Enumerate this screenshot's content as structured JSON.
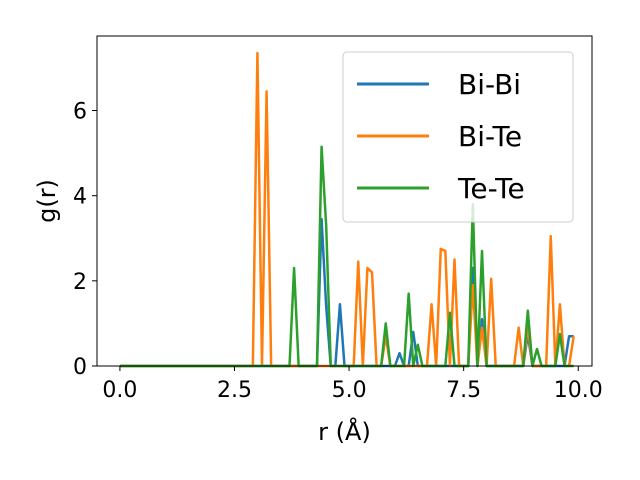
{
  "chart_data": {
    "type": "line",
    "title": "",
    "xlabel": "r (Å)",
    "ylabel": "g(r)",
    "xlim": [
      -0.5,
      10.3
    ],
    "ylim": [
      0,
      7.75
    ],
    "xticks": [
      0.0,
      2.5,
      5.0,
      7.5,
      10.0
    ],
    "xtick_labels": [
      "0.0",
      "2.5",
      "5.0",
      "7.5",
      "10.0"
    ],
    "yticks": [
      0,
      2,
      4,
      6
    ],
    "ytick_labels": [
      "0",
      "2",
      "4",
      "6"
    ],
    "grid": false,
    "legend_position": "top-right",
    "series": [
      {
        "name": "Bi-Bi",
        "color": "#1f77b4",
        "x": [
          0,
          4.3,
          4.4,
          4.5,
          4.6,
          4.7,
          4.8,
          4.9,
          5.0,
          6.0,
          6.1,
          6.2,
          6.3,
          6.4,
          6.5,
          6.6,
          6.7,
          7.5,
          7.6,
          7.7,
          7.8,
          7.9,
          8.0,
          8.1,
          8.7,
          8.8,
          8.9,
          9.0,
          9.1,
          9.7,
          9.8,
          9.9
        ],
        "y": [
          0,
          0,
          3.45,
          1.4,
          0,
          0,
          1.45,
          0,
          0,
          0,
          0.3,
          0,
          0,
          0.8,
          0,
          0,
          0,
          0,
          0,
          2.3,
          0,
          1.1,
          0,
          0,
          0,
          0,
          0.75,
          0,
          0,
          0,
          0.7,
          0.7
        ]
      },
      {
        "name": "Bi-Te",
        "color": "#ff7f0e",
        "x": [
          0,
          2.9,
          3.0,
          3.1,
          3.2,
          3.3,
          5.1,
          5.2,
          5.3,
          5.4,
          5.5,
          5.6,
          5.7,
          5.8,
          5.9,
          6.7,
          6.8,
          6.9,
          7.0,
          7.1,
          7.2,
          7.3,
          7.4,
          7.5,
          7.6,
          7.7,
          7.8,
          7.9,
          8.0,
          8.1,
          8.2,
          8.6,
          8.7,
          8.8,
          8.9,
          9.0,
          9.3,
          9.4,
          9.5,
          9.6,
          9.7,
          9.8,
          9.9
        ],
        "y": [
          0,
          0,
          7.35,
          0,
          6.45,
          0,
          0,
          2.45,
          0,
          2.3,
          2.2,
          0,
          0,
          0.7,
          0,
          0,
          1.45,
          0,
          2.75,
          2.7,
          0,
          2.5,
          0,
          0,
          0,
          1.9,
          0,
          0.9,
          0,
          2.05,
          0,
          0,
          0.9,
          0,
          0.95,
          0,
          0,
          3.05,
          0,
          1.45,
          0,
          0,
          0.7
        ]
      },
      {
        "name": "Te-Te",
        "color": "#2ca02c",
        "x": [
          0,
          3.7,
          3.8,
          3.9,
          4.3,
          4.4,
          4.5,
          4.6,
          5.7,
          5.8,
          5.9,
          6.2,
          6.3,
          6.4,
          6.5,
          6.6,
          7.1,
          7.2,
          7.3,
          7.6,
          7.7,
          7.8,
          7.9,
          8.0,
          8.8,
          8.9,
          9.0,
          9.1,
          9.2,
          9.5,
          9.6,
          9.7,
          9.8,
          9.9
        ],
        "y": [
          0,
          0,
          2.3,
          0,
          0,
          5.15,
          3.3,
          0,
          0,
          1.0,
          0,
          0,
          1.7,
          0,
          0.5,
          0,
          0,
          1.25,
          0,
          0,
          3.8,
          0,
          2.7,
          0,
          0,
          1.3,
          0,
          0.4,
          0,
          0,
          0.75,
          0,
          0,
          0
        ]
      }
    ]
  }
}
